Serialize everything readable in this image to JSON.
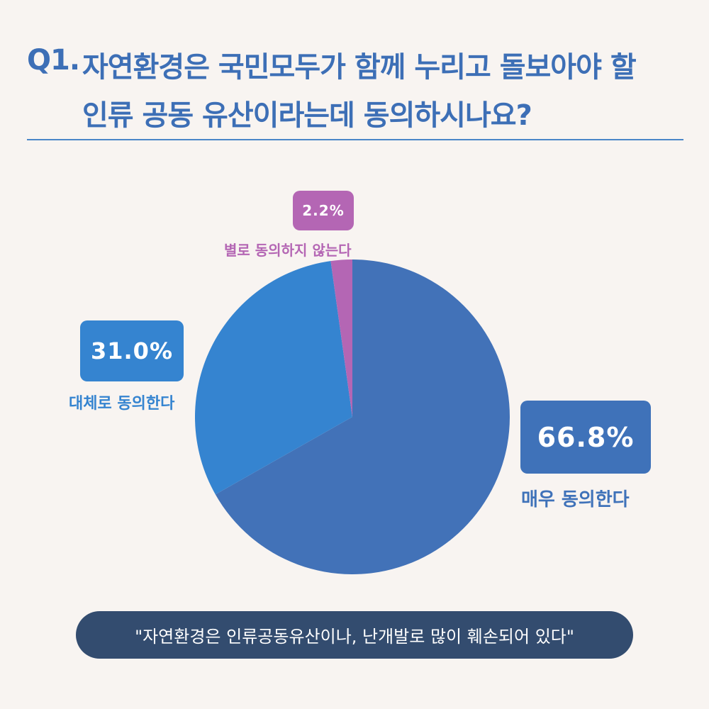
{
  "question": {
    "number": "Q1.",
    "line1": "자연환경은 국민모두가 함께 누리고 돌보아야 할",
    "line2": "인류 공동 유산이라는데 동의하시나요?"
  },
  "chart_data": {
    "type": "pie",
    "title": "",
    "categories": [
      "매우 동의한다",
      "대체로 동의한다",
      "별로 동의하지 않는다"
    ],
    "values": [
      66.8,
      31.0,
      2.2
    ],
    "value_labels": [
      "66.8%",
      "31.0%",
      "2.2%"
    ],
    "colors": [
      "#4272b8",
      "#3584d0",
      "#b466b4"
    ],
    "start": "12 o'clock",
    "direction": "clockwise",
    "legend": "none (labels beside slices)"
  },
  "footer": {
    "quote": "\"자연환경은 인류공동유산이나, 난개발로 많이 훼손되어 있다\""
  },
  "colors": {
    "background": "#f8f4f1",
    "title": "#3d6fb6",
    "divider": "#4a86c8",
    "quote_bg": "#334c6f"
  }
}
